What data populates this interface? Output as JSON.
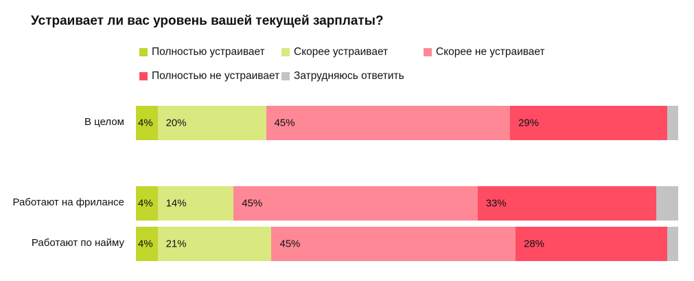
{
  "chart_data": {
    "type": "bar",
    "orientation": "horizontal-stacked-100",
    "title": "Устраивает ли вас уровень вашей текущей зарплаты?",
    "legend": [
      {
        "name": "Полностью устраивает",
        "color": "#c2d62c"
      },
      {
        "name": "Скорее устраивает",
        "color": "#dae880"
      },
      {
        "name": "Скорее не устраивает",
        "color": "#ff8896"
      },
      {
        "name": "Полностью не устраивает",
        "color": "#ff4c63"
      },
      {
        "name": "Затрудняюсь ответить",
        "color": "#c3c3c3"
      }
    ],
    "legend_position": "top",
    "categories": [
      "В целом",
      "Работают на фрилансе",
      "Работают по найму"
    ],
    "series": [
      {
        "name": "Полностью устраивает",
        "values": [
          4,
          4,
          4
        ],
        "labels": [
          "4%",
          "4%",
          "4%"
        ]
      },
      {
        "name": "Скорее устраивает",
        "values": [
          20,
          14,
          21
        ],
        "labels": [
          "20%",
          "14%",
          "21%"
        ]
      },
      {
        "name": "Скорее не устраивает",
        "values": [
          45,
          45,
          45
        ],
        "labels": [
          "45%",
          "45%",
          "45%"
        ]
      },
      {
        "name": "Полностью не устраивает",
        "values": [
          29,
          33,
          28
        ],
        "labels": [
          "29%",
          "33%",
          "28%"
        ]
      },
      {
        "name": "Затрудняюсь ответить",
        "values": [
          2,
          4,
          2
        ],
        "labels": [
          "",
          "",
          ""
        ]
      }
    ]
  }
}
